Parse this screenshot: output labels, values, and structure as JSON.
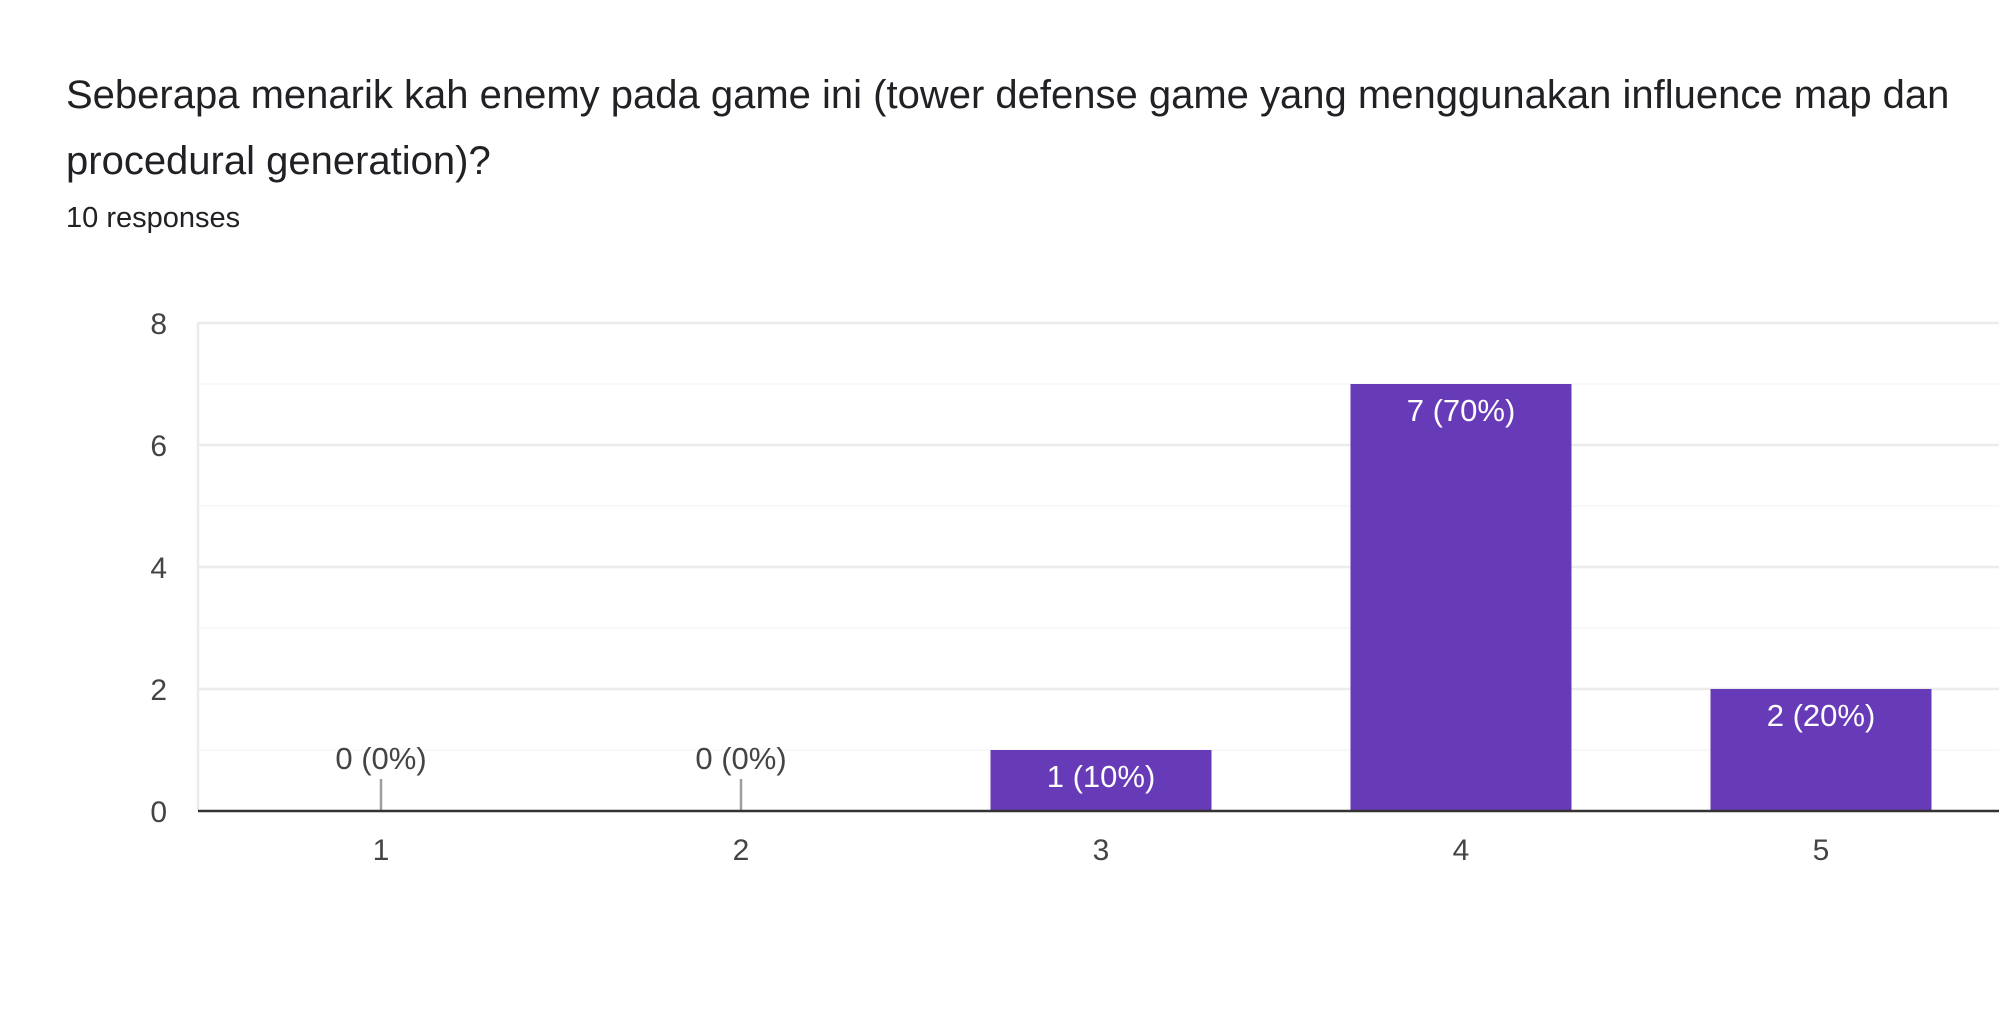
{
  "question": {
    "title": "Seberapa menarik kah enemy pada game ini (tower defense game yang menggunakan influence map dan procedural generation)?",
    "responses": "10 responses"
  },
  "colors": {
    "bar": "#673ab7",
    "gridline": "#ebebeb",
    "minor_gridline": "#f5f5f5",
    "axis": "#333333",
    "zero_stub": "#9e9e9e"
  },
  "chart_data": {
    "type": "bar",
    "title": "",
    "xlabel": "",
    "ylabel": "",
    "categories": [
      "1",
      "2",
      "3",
      "4",
      "5"
    ],
    "values": [
      0,
      0,
      1,
      7,
      2
    ],
    "labels": [
      "0 (0%)",
      "0 (0%)",
      "1 (10%)",
      "7 (70%)",
      "2 (20%)"
    ],
    "ylim": [
      0,
      8
    ],
    "yticks": [
      "0",
      "2",
      "4",
      "6",
      "8"
    ],
    "grid": true,
    "legend": "none"
  }
}
